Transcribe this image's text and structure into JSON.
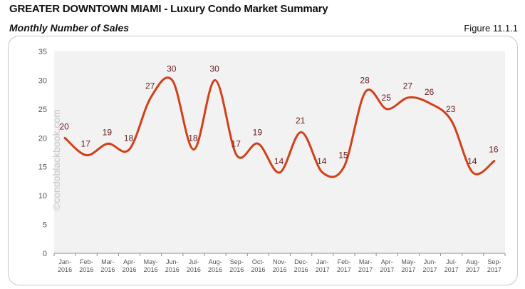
{
  "header": {
    "title": "GREATER DOWNTOWN MIAMI - Luxury Condo Market Summary",
    "subtitle": "Monthly Number of Sales",
    "figure": "Figure 11.1.1"
  },
  "watermark": "©condoblackbook.com",
  "colors": {
    "line": "#d2401a",
    "plot_bg": "#f2f2f2",
    "data_label": "#6b1a1a"
  },
  "chart_data": {
    "type": "line",
    "title": "Monthly Number of Sales",
    "xlabel": "",
    "ylabel": "",
    "ylim": [
      0,
      35
    ],
    "yticks": [
      0,
      5,
      10,
      15,
      20,
      25,
      30,
      35
    ],
    "grid": false,
    "legend": null,
    "smooth": true,
    "categories": [
      "Jan-2016",
      "Feb-2016",
      "Mar-2016",
      "Apr-2016",
      "May-2016",
      "Jun-2016",
      "Jul-2016",
      "Aug-2016",
      "Sep-2016",
      "Oct-2016",
      "Nov-2016",
      "Dec-2016",
      "Jan-2017",
      "Feb-2017",
      "Mar-2017",
      "Apr-2017",
      "May-2017",
      "Jun-2017",
      "Jul-2017",
      "Aug-2017",
      "Sep-2017"
    ],
    "series": [
      {
        "name": "Monthly Number of Sales",
        "values": [
          20,
          17,
          19,
          18,
          27,
          30,
          18,
          30,
          17,
          19,
          14,
          21,
          14,
          15,
          28,
          25,
          27,
          26,
          23,
          14,
          16
        ]
      }
    ]
  }
}
